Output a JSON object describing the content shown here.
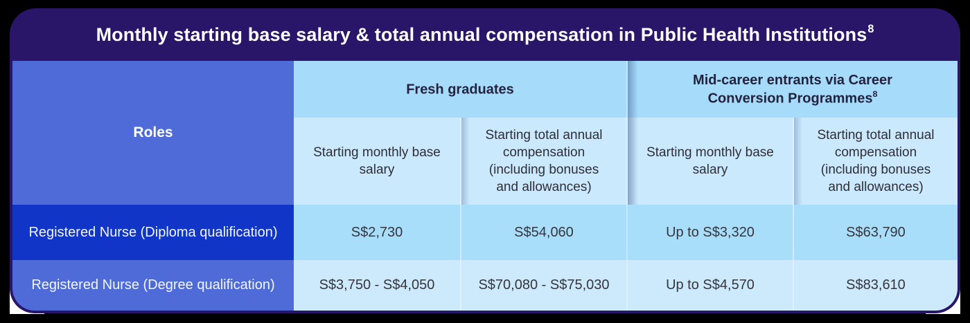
{
  "title": {
    "text": "Monthly starting base salary & total annual compensation in Public Health Institutions",
    "superscript": "8"
  },
  "table": {
    "roles_header": "Roles",
    "groups": [
      {
        "label": "Fresh graduates",
        "superscript": ""
      },
      {
        "label": "Mid-career entrants via Career Conversion Programmes",
        "superscript": "8"
      }
    ],
    "sub_headers": [
      "Starting monthly base salary",
      "Starting total annual compensation (including bonuses and allowances)",
      "Starting monthly base salary",
      "Starting total annual compensation (including bonuses and allowances)"
    ],
    "rows": [
      {
        "role": "Registered Nurse (Diploma qualification)",
        "values": [
          "S$2,730",
          "S$54,060",
          "Up to S$3,320",
          "S$63,790"
        ]
      },
      {
        "role": "Registered Nurse (Degree qualification)",
        "values": [
          "S$3,750 - S$4,050",
          "S$70,080 - S$75,030",
          "Up to S$4,570",
          "S$83,610"
        ]
      }
    ]
  },
  "colors": {
    "navy": "#2A1668",
    "roles_blue": "#4E6BD8",
    "highlight_blue": "#1135C7",
    "group_header_bg": "#A6DCFA",
    "subheader_bg": "#CBE9FC",
    "row1_bg": "#A9DEFB",
    "row2_bg": "#CCEAFC",
    "page_bg": "#000000"
  }
}
